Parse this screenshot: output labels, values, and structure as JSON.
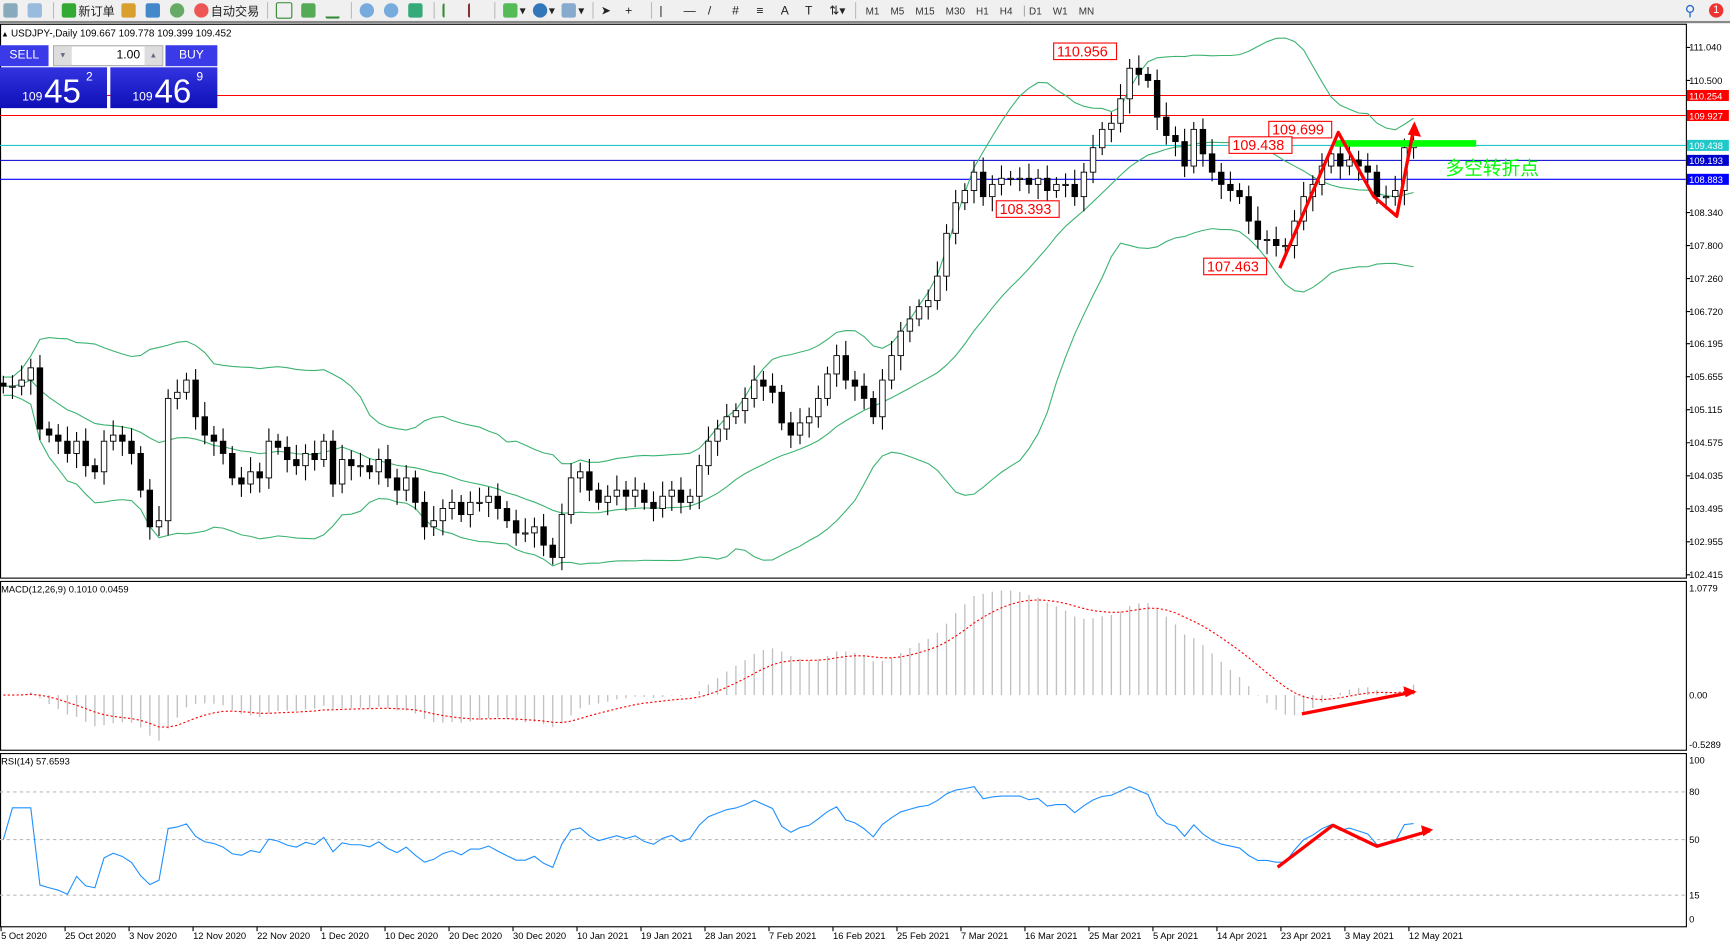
{
  "toolbar": {
    "new_order": "新订单",
    "auto_trading": "自动交易",
    "timeframes": [
      "M1",
      "M5",
      "M15",
      "M30",
      "H1",
      "H4",
      "D1",
      "W1",
      "MN"
    ],
    "active_timeframe": "D1",
    "notification_count": "1"
  },
  "chart_header": "USDJPY-,Daily  109.667 109.778 109.399 109.452",
  "trade_panel": {
    "sell_label": "SELL",
    "buy_label": "BUY",
    "lot": "1.00",
    "sell_big": "109",
    "sell_main": "45",
    "sell_sup": "2",
    "buy_big": "109",
    "buy_main": "46",
    "buy_sup": "9"
  },
  "colors": {
    "bull": "#ffffff",
    "bear": "#000000",
    "bands": "#3cb371",
    "macd_signal": "#ff0000",
    "macd_hist": "#c0c0c0",
    "rsi": "#1e90ff",
    "annotation": "#ff0000",
    "highlight": "#00ff00"
  },
  "chart_data": {
    "type": "candlestick",
    "symbol": "USDJPY-",
    "timeframe": "Daily",
    "price_ticks": [
      "111.040",
      "110.500",
      "110.254",
      "109.927",
      "109.438",
      "109.193",
      "108.883",
      "108.340",
      "107.800",
      "107.260",
      "106.720",
      "106.195",
      "105.655",
      "105.115",
      "104.575",
      "104.035",
      "103.495",
      "102.955",
      "102.415"
    ],
    "ylim": [
      102.415,
      111.04
    ],
    "closes": [
      105.5,
      105.5,
      105.6,
      105.8,
      104.8,
      104.7,
      104.6,
      104.4,
      104.6,
      104.2,
      104.1,
      104.6,
      104.7,
      104.6,
      104.4,
      103.8,
      103.2,
      103.3,
      105.3,
      105.4,
      105.6,
      105.0,
      104.7,
      104.6,
      104.4,
      104.0,
      103.9,
      104.1,
      104.0,
      104.6,
      104.5,
      104.3,
      104.2,
      104.4,
      104.3,
      104.6,
      103.9,
      104.3,
      104.2,
      104.2,
      104.1,
      104.3,
      104.0,
      103.8,
      104.0,
      103.6,
      103.2,
      103.3,
      103.5,
      103.6,
      103.4,
      103.6,
      103.6,
      103.7,
      103.5,
      103.3,
      103.1,
      103.1,
      103.2,
      102.9,
      102.7,
      103.4,
      104.0,
      104.1,
      103.8,
      103.6,
      103.7,
      103.8,
      103.7,
      103.8,
      103.6,
      103.5,
      103.7,
      103.8,
      103.6,
      103.7,
      104.2,
      104.6,
      104.8,
      105.0,
      105.1,
      105.3,
      105.6,
      105.5,
      105.4,
      104.9,
      104.7,
      104.9,
      105.0,
      105.3,
      105.7,
      106.0,
      105.6,
      105.5,
      105.3,
      105.0,
      105.6,
      106.0,
      106.4,
      106.6,
      106.8,
      106.9,
      107.3,
      108.0,
      108.5,
      108.7,
      109.0,
      108.6,
      108.8,
      108.9,
      108.9,
      108.9,
      108.8,
      108.9,
      108.7,
      108.8,
      108.8,
      108.6,
      109.0,
      109.4,
      109.7,
      109.8,
      110.2,
      110.7,
      110.6,
      110.5,
      109.9,
      109.6,
      109.5,
      109.1,
      109.7,
      109.3,
      109.0,
      108.8,
      108.7,
      108.6,
      108.2,
      107.9,
      107.9,
      107.8,
      107.8,
      108.2,
      108.6,
      108.8,
      109.1,
      109.3,
      109.1,
      109.2,
      109.1,
      109.0,
      108.6,
      108.6,
      108.7,
      109.4,
      109.452
    ],
    "time_labels": [
      "5 Oct 2020",
      "25 Oct 2020",
      "3 Nov 2020",
      "12 Nov 2020",
      "22 Nov 2020",
      "1 Dec 2020",
      "10 Dec 2020",
      "20 Dec 2020",
      "30 Dec 2020",
      "10 Jan 2021",
      "19 Jan 2021",
      "28 Jan 2021",
      "7 Feb 2021",
      "16 Feb 2021",
      "25 Feb 2021",
      "7 Mar 2021",
      "16 Mar 2021",
      "25 Mar 2021",
      "5 Apr 2021",
      "14 Apr 2021",
      "23 Apr 2021",
      "3 May 2021",
      "12 May 2021"
    ],
    "horizontal_lines": [
      {
        "price": 110.254,
        "label": "110.254",
        "color": "#ff0000"
      },
      {
        "price": 109.927,
        "label": "109.927",
        "color": "#ff0000"
      },
      {
        "price": 109.438,
        "label": "109.438",
        "color": "#20c8c8"
      },
      {
        "price": 109.193,
        "label": "109.193",
        "color": "#0000cc"
      },
      {
        "price": 108.883,
        "label": "108.883",
        "color": "#0000ff"
      }
    ],
    "price_annotations": [
      "110.956",
      "108.393",
      "109.699",
      "109.438",
      "107.463"
    ],
    "text_annotation": "多空转折点",
    "bollinger": {
      "period": 20,
      "deviation": 2
    },
    "macd": {
      "label": "MACD(12,26,9) 0.1010 0.0459",
      "ticks": [
        "1.0779",
        "0.00",
        "-0.5289"
      ],
      "ylim": [
        -0.5289,
        1.0779
      ]
    },
    "rsi": {
      "label": "RSI(14) 57.6593",
      "ticks": [
        "100",
        "80",
        "50",
        "15",
        "0"
      ],
      "levels": [
        80,
        50,
        15
      ]
    }
  }
}
